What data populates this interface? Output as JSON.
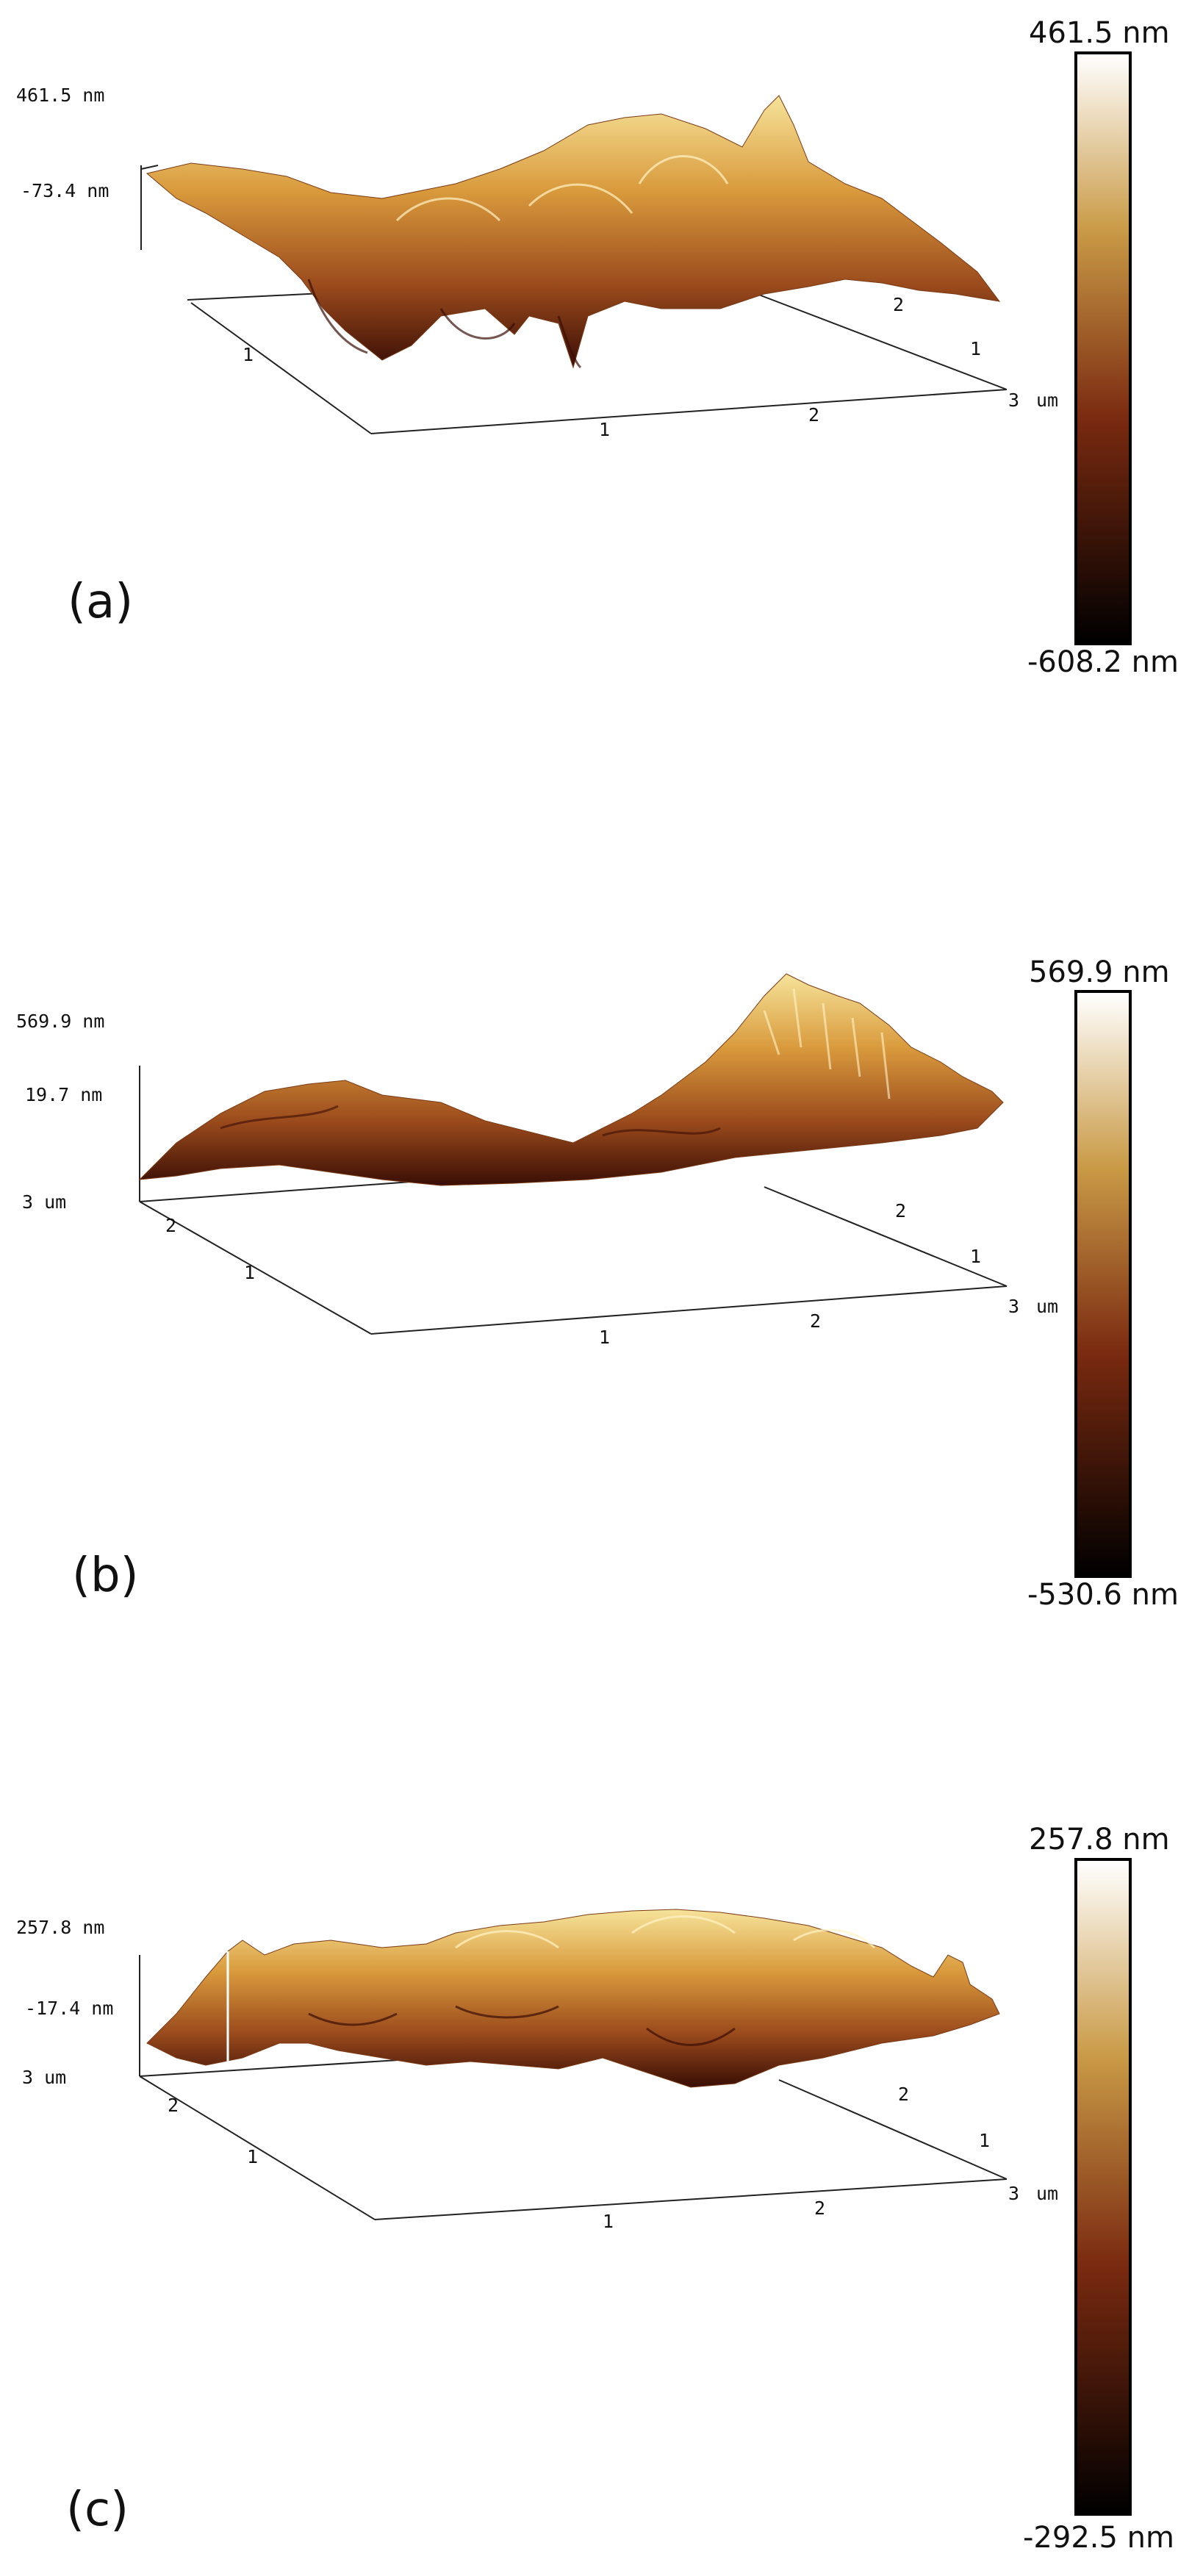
{
  "colors": {
    "scale_top": "#ffffff",
    "scale_upper": "#c99a46",
    "scale_mid": "#7a2a10",
    "scale_bottom": "#000000"
  },
  "panels": [
    {
      "label": "(a)",
      "z_top": "461.5 nm",
      "z_mid": "-73.4 nm",
      "colorbar_max": "461.5 nm",
      "colorbar_min": "-608.2 nm",
      "x_ticks": [
        "1",
        "2",
        "3"
      ],
      "y_ticks": [
        "1",
        "2"
      ],
      "x_unit": "um",
      "y_unit": "",
      "x_axis_extra": [
        "1",
        "2"
      ]
    },
    {
      "label": "(b)",
      "z_top": "569.9 nm",
      "z_mid": "19.7 nm",
      "colorbar_max": "569.9 nm",
      "colorbar_min": "-530.6 nm",
      "x_ticks": [
        "1",
        "2",
        "3"
      ],
      "y_ticks": [
        "1",
        "2"
      ],
      "x_unit": "um",
      "y_unit": "3 um",
      "x_axis_extra": [
        "1",
        "2"
      ]
    },
    {
      "label": "(c)",
      "z_top": "257.8 nm",
      "z_mid": "-17.4 nm",
      "colorbar_max": "257.8 nm",
      "colorbar_min": "-292.5 nm",
      "x_ticks": [
        "1",
        "2",
        "3"
      ],
      "y_ticks": [
        "1",
        "2"
      ],
      "x_unit": "um",
      "y_unit": "3 um",
      "x_axis_extra": [
        "1",
        "2"
      ]
    }
  ]
}
